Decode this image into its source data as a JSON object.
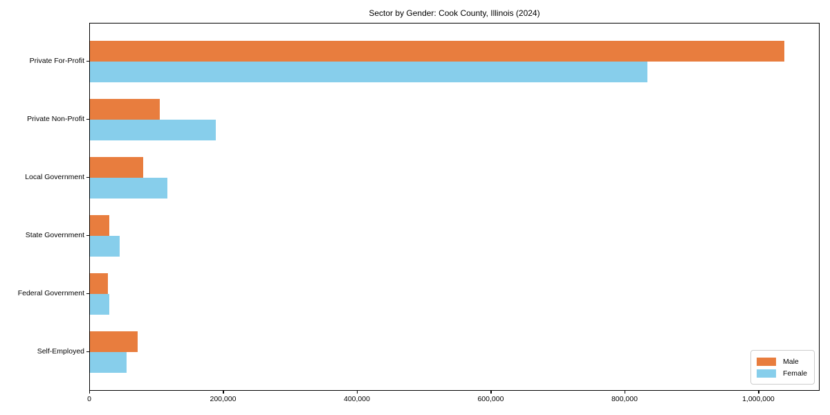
{
  "title": "Sector by Gender: Cook County, Illinois (2024)",
  "chart_data": {
    "type": "bar",
    "orientation": "horizontal",
    "title": "Sector by Gender: Cook County, Illinois (2024)",
    "xlabel": "",
    "ylabel": "",
    "categories": [
      "Private For-Profit",
      "Private Non-Profit",
      "Local Government",
      "State Government",
      "Federal Government",
      "Self-Employed"
    ],
    "series": [
      {
        "name": "Male",
        "color": "#e87d3e",
        "values": [
          1038000,
          104000,
          80000,
          29000,
          27000,
          71000
        ]
      },
      {
        "name": "Female",
        "color": "#87ceeb",
        "values": [
          833000,
          188000,
          116000,
          44000,
          29000,
          55000
        ]
      }
    ],
    "xlim": [
      0,
      1090000
    ],
    "x_ticks": [
      0,
      200000,
      400000,
      600000,
      800000,
      1000000
    ],
    "x_tick_labels": [
      "0",
      "200,000",
      "400,000",
      "600,000",
      "800,000",
      "1,000,000"
    ],
    "grid": false,
    "legend_position": "lower right"
  },
  "legend": {
    "items": [
      {
        "label": "Male",
        "color": "#e87d3e"
      },
      {
        "label": "Female",
        "color": "#87ceeb"
      }
    ]
  },
  "colors": {
    "male": "#e87d3e",
    "female": "#87ceeb",
    "axis": "#000000",
    "legend_border": "#cccccc",
    "background": "#ffffff"
  }
}
